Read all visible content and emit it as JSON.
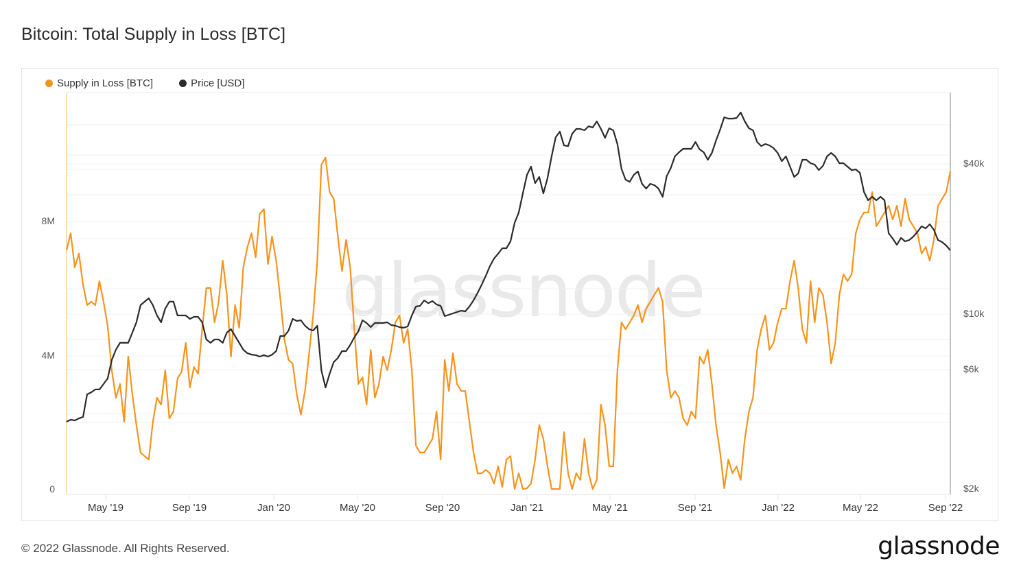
{
  "header": {
    "title": "Bitcoin: Total Supply in Loss [BTC]"
  },
  "legend": [
    {
      "label": "Supply in Loss [BTC]",
      "color": "#f7931a"
    },
    {
      "label": "Price [USD]",
      "color": "#2b2b2b"
    }
  ],
  "watermark": "glassnode",
  "footer": {
    "copyright": "© 2022 Glassnode. All Rights Reserved.",
    "logo": "glassnode"
  },
  "axes": {
    "left_ticks": [
      {
        "label": "8M",
        "value": 8000000
      },
      {
        "label": "4M",
        "value": 4000000
      },
      {
        "label": "0",
        "value": 0
      }
    ],
    "right_ticks": [
      {
        "label": "$40k",
        "value": 40000
      },
      {
        "label": "$10k",
        "value": 10000
      },
      {
        "label": "$6k",
        "value": 6000
      },
      {
        "label": "$2k",
        "value": 2000
      }
    ],
    "x_ticks": [
      {
        "label": "May '19",
        "date": "2019-05-01"
      },
      {
        "label": "Sep '19",
        "date": "2019-09-01"
      },
      {
        "label": "Jan '20",
        "date": "2020-01-01"
      },
      {
        "label": "May '20",
        "date": "2020-05-01"
      },
      {
        "label": "Sep '20",
        "date": "2020-09-01"
      },
      {
        "label": "Jan '21",
        "date": "2021-01-01"
      },
      {
        "label": "May '21",
        "date": "2021-05-01"
      },
      {
        "label": "Sep '21",
        "date": "2021-09-01"
      },
      {
        "label": "Jan '22",
        "date": "2022-01-01"
      },
      {
        "label": "May '22",
        "date": "2022-05-01"
      },
      {
        "label": "Sep '22",
        "date": "2022-09-01"
      }
    ]
  },
  "chart_data": {
    "type": "line",
    "title": "Bitcoin: Total Supply in Loss [BTC]",
    "xlabel": "",
    "ylabel": "Supply in Loss [BTC]",
    "y2label": "Price [USD]",
    "x_range": [
      "2019-03-14",
      "2022-09-06"
    ],
    "sampling": "approximately every 6 days, evenly spaced between x_range endpoints",
    "ylim": [
      0,
      12000000
    ],
    "y2lim": [
      2000,
      70000
    ],
    "y2_scale": "log",
    "grid": true,
    "legend_position": "top-left",
    "series": [
      {
        "name": "Supply in Loss [BTC]",
        "axis": "left",
        "unit": "millions BTC",
        "color": "#f7931a",
        "values": [
          7.14,
          7.65,
          6.63,
          7.04,
          6.11,
          5.5,
          5.6,
          5.5,
          6.22,
          5.6,
          4.88,
          3.55,
          2.73,
          3.14,
          2.01,
          3.96,
          2.83,
          1.91,
          1.09,
          0.98,
          0.88,
          2.01,
          2.73,
          2.52,
          3.55,
          2.11,
          2.32,
          3.3,
          3.51,
          4.37,
          3.04,
          3.65,
          3.45,
          4.78,
          6.01,
          6.01,
          4.98,
          5.6,
          6.83,
          5.81,
          3.96,
          5.5,
          4.82,
          6.63,
          7.24,
          7.65,
          6.93,
          8.23,
          8.37,
          6.73,
          7.55,
          6.83,
          5.7,
          4.47,
          3.86,
          3.75,
          2.83,
          2.22,
          2.93,
          4.06,
          5.19,
          6.83,
          9.7,
          9.91,
          8.88,
          8.68,
          7.55,
          6.52,
          7.45,
          6.63,
          4.78,
          3.14,
          3.34,
          2.52,
          4.16,
          2.73,
          3.14,
          3.96,
          3.55,
          4.16,
          4.98,
          5.19,
          4.37,
          4.78,
          3.55,
          1.29,
          1.09,
          1.09,
          1.29,
          1.5,
          2.32,
          0.88,
          3.86,
          2.93,
          4.06,
          3.14,
          2.93,
          2.93,
          2.01,
          1.09,
          0.47,
          0.47,
          0.57,
          0.47,
          0.16,
          0.68,
          0.06,
          0.88,
          0.98,
          0.0,
          0.47,
          0.0,
          0.02,
          0.16,
          0.88,
          1.91,
          1.5,
          0.68,
          0.0,
          0.0,
          0.0,
          1.7,
          0.47,
          0.0,
          0.47,
          0.27,
          1.5,
          0.47,
          0.0,
          0.27,
          2.52,
          1.91,
          0.68,
          0.68,
          3.55,
          4.98,
          4.78,
          4.98,
          5.19,
          5.5,
          4.98,
          5.39,
          5.6,
          5.81,
          6.01,
          5.6,
          3.55,
          2.73,
          2.93,
          2.73,
          2.11,
          1.91,
          2.32,
          2.11,
          3.96,
          3.75,
          4.16,
          3.14,
          1.91,
          1.09,
          0.02,
          0.88,
          0.47,
          0.68,
          0.27,
          1.5,
          2.32,
          2.73,
          4.16,
          4.78,
          5.19,
          4.16,
          4.37,
          4.98,
          5.39,
          5.39,
          6.22,
          6.83,
          6.01,
          4.78,
          4.37,
          6.22,
          4.98,
          6.01,
          5.81,
          4.98,
          3.75,
          4.37,
          5.81,
          6.42,
          6.22,
          6.42,
          7.65,
          8.06,
          8.27,
          8.27,
          8.88,
          7.86,
          8.06,
          8.27,
          8.47,
          8.06,
          8.47,
          7.86,
          8.68,
          8.06,
          7.86,
          7.65,
          7.04,
          7.24,
          6.83,
          7.45,
          8.47,
          8.68,
          8.88,
          9.5
        ]
      },
      {
        "name": "Price [USD]",
        "axis": "right",
        "unit": "USD",
        "color": "#2b2b2b",
        "values": [
          3705,
          3775,
          3750,
          3820,
          3870,
          4770,
          4860,
          4990,
          4990,
          5245,
          5520,
          6545,
          7195,
          7670,
          7670,
          7670,
          8430,
          9270,
          10860,
          11210,
          11570,
          10860,
          9875,
          9270,
          10520,
          11210,
          11210,
          9875,
          9875,
          9875,
          9567,
          9750,
          9750,
          9270,
          7915,
          7670,
          7915,
          7915,
          7670,
          8430,
          8700,
          8170,
          7670,
          7195,
          6970,
          6880,
          6850,
          6755,
          6850,
          6755,
          6880,
          7105,
          8170,
          8170,
          8590,
          9567,
          9387,
          9445,
          8980,
          8700,
          8590,
          8980,
          5953,
          5083,
          5768,
          6422,
          6672,
          7105,
          7105,
          7523,
          8067,
          8538,
          9445,
          9211,
          8867,
          9211,
          9211,
          9211,
          9270,
          9036,
          8980,
          8867,
          8813,
          8924,
          9875,
          10720,
          10790,
          11350,
          11060,
          11280,
          10930,
          10790,
          9812,
          9937,
          10063,
          10190,
          10320,
          10255,
          10720,
          11350,
          12170,
          13130,
          14250,
          15570,
          16690,
          17450,
          18350,
          18350,
          19550,
          23190,
          25510,
          30440,
          36120,
          38970,
          33480,
          35440,
          30440,
          35000,
          42840,
          51140,
          53810,
          47410,
          47110,
          52780,
          55170,
          55170,
          54480,
          56570,
          55900,
          59160,
          55170,
          50820,
          55520,
          54480,
          48010,
          38230,
          34550,
          33890,
          36120,
          37280,
          33270,
          31820,
          33270,
          32840,
          31820,
          29500,
          35670,
          38480,
          42840,
          44490,
          45940,
          45940,
          45940,
          48920,
          45660,
          44490,
          41510,
          44210,
          49550,
          54830,
          61440,
          60650,
          60650,
          61050,
          64240,
          59160,
          55520,
          54480,
          48920,
          47110,
          48010,
          47410,
          46230,
          44210,
          40990,
          42840,
          38970,
          35440,
          36580,
          41510,
          41510,
          40220,
          39710,
          37760,
          39200,
          42840,
          44210,
          42840,
          40220,
          40220,
          38970,
          37760,
          38000,
          36810,
          30830,
          28580,
          29500,
          28580,
          29500,
          28580,
          21100,
          20050,
          18940,
          20200,
          19550,
          19800,
          20440,
          21370,
          22470,
          22050,
          22910,
          21770,
          19800,
          19430,
          18820,
          18010
        ]
      }
    ]
  }
}
